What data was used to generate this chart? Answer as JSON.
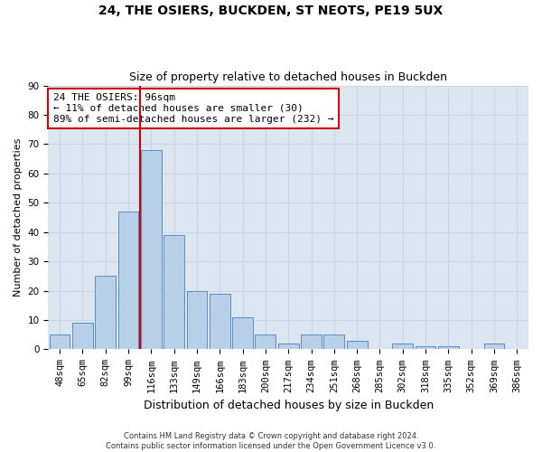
{
  "title1": "24, THE OSIERS, BUCKDEN, ST NEOTS, PE19 5UX",
  "title2": "Size of property relative to detached houses in Buckden",
  "xlabel": "Distribution of detached houses by size in Buckden",
  "ylabel": "Number of detached properties",
  "bar_labels": [
    "48sqm",
    "65sqm",
    "82sqm",
    "99sqm",
    "116sqm",
    "133sqm",
    "149sqm",
    "166sqm",
    "183sqm",
    "200sqm",
    "217sqm",
    "234sqm",
    "251sqm",
    "268sqm",
    "285sqm",
    "302sqm",
    "318sqm",
    "335sqm",
    "352sqm",
    "369sqm",
    "386sqm"
  ],
  "bar_values": [
    5,
    9,
    25,
    47,
    68,
    39,
    20,
    19,
    11,
    5,
    2,
    5,
    5,
    3,
    0,
    2,
    1,
    1,
    0,
    2,
    0
  ],
  "bar_color": "#b8cfe8",
  "bar_edge_color": "#5b8cc4",
  "vline_color": "#cc0000",
  "annotation_text": "24 THE OSIERS: 96sqm\n← 11% of detached houses are smaller (30)\n89% of semi-detached houses are larger (232) →",
  "annotation_box_color": "#cc0000",
  "ylim": [
    0,
    90
  ],
  "yticks": [
    0,
    10,
    20,
    30,
    40,
    50,
    60,
    70,
    80,
    90
  ],
  "grid_color": "#c8d4e4",
  "bg_color": "#dce6f0",
  "footnote": "Contains HM Land Registry data © Crown copyright and database right 2024.\nContains public sector information licensed under the Open Government Licence v3.0.",
  "title_fontsize": 10,
  "subtitle_fontsize": 9,
  "xlabel_fontsize": 9,
  "ylabel_fontsize": 8,
  "tick_fontsize": 7.5,
  "annot_fontsize": 8
}
